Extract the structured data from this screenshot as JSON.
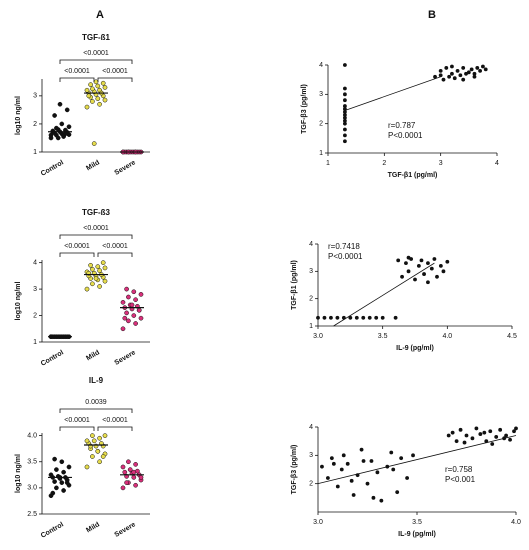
{
  "panel_labels": [
    "A",
    "B"
  ],
  "chart_data": [
    {
      "type": "dot",
      "title": "TGF-ß1",
      "y_label": "log10 ng/ml",
      "categories": [
        "Control",
        "Mild",
        "Severe"
      ],
      "colors": [
        "#111111",
        "#e6dc4c",
        "#d8307a"
      ],
      "values": [
        [
          1.5,
          1.55,
          1.6,
          1.62,
          1.65,
          1.68,
          1.7,
          1.72,
          1.75,
          1.78,
          1.8,
          1.6,
          1.58,
          1.85,
          1.9,
          2.0,
          2.3,
          2.5,
          2.7,
          1.7,
          1.65,
          1.5
        ],
        [
          2.6,
          2.7,
          2.8,
          2.85,
          2.9,
          2.95,
          3.0,
          3.05,
          3.1,
          3.1,
          3.15,
          3.2,
          3.2,
          3.25,
          3.3,
          3.35,
          3.4,
          3.45,
          3.5,
          3.0,
          3.1,
          1.3
        ],
        [
          1,
          1,
          1,
          1,
          1,
          1,
          1,
          1,
          1,
          1,
          1,
          1,
          1,
          1
        ]
      ],
      "means": [
        1.72,
        3.1,
        1
      ],
      "brackets": [
        "<0.0001",
        "<0.0001",
        "<0.0001"
      ],
      "ylim": [
        1,
        3.6
      ],
      "yticks": [
        1,
        2,
        3
      ]
    },
    {
      "type": "dot",
      "title": "TGF-ß3",
      "y_label": "log10 ng/ml",
      "categories": [
        "Control",
        "Mild",
        "Severe"
      ],
      "colors": [
        "#111111",
        "#e6dc4c",
        "#d8307a"
      ],
      "values": [
        [
          1.2,
          1.2,
          1.2,
          1.2,
          1.2,
          1.2,
          1.2,
          1.2,
          1.2,
          1.2,
          1.2,
          1.2
        ],
        [
          3.0,
          3.1,
          3.2,
          3.3,
          3.35,
          3.4,
          3.45,
          3.5,
          3.5,
          3.55,
          3.6,
          3.65,
          3.7,
          3.75,
          3.8,
          3.85,
          3.9,
          4.0,
          3.4,
          3.6
        ],
        [
          1.5,
          1.7,
          1.8,
          1.9,
          2.0,
          2.1,
          2.2,
          2.25,
          2.3,
          2.35,
          2.4,
          2.5,
          2.6,
          2.7,
          2.8,
          2.9,
          3.0,
          2.2,
          2.4,
          1.9
        ]
      ],
      "means": [
        1.2,
        3.55,
        2.3
      ],
      "brackets": [
        "<0.0001",
        "<0.0001",
        "<0.0001"
      ],
      "ylim": [
        1,
        4.1
      ],
      "yticks": [
        1,
        2,
        3,
        4
      ]
    },
    {
      "type": "dot",
      "title": "IL-9",
      "y_label": "log10 ng/ml",
      "categories": [
        "Control",
        "Mild",
        "Severe"
      ],
      "colors": [
        "#111111",
        "#e6dc4c",
        "#d8307a"
      ],
      "values": [
        [
          2.85,
          2.95,
          3.0,
          3.05,
          3.1,
          3.12,
          3.15,
          3.18,
          3.2,
          3.2,
          3.22,
          3.25,
          3.3,
          3.35,
          3.4,
          3.5,
          3.55,
          3.1,
          3.2,
          2.9
        ],
        [
          3.4,
          3.5,
          3.6,
          3.65,
          3.7,
          3.75,
          3.8,
          3.8,
          3.85,
          3.85,
          3.9,
          3.9,
          3.95,
          4.0,
          4.0,
          3.7,
          3.8,
          3.6
        ],
        [
          3.0,
          3.05,
          3.1,
          3.15,
          3.2,
          3.22,
          3.25,
          3.28,
          3.3,
          3.32,
          3.35,
          3.4,
          3.45,
          3.5,
          3.2,
          3.3,
          3.1
        ]
      ],
      "means": [
        3.2,
        3.82,
        3.25
      ],
      "brackets": [
        "0.0039",
        "<0.0001",
        "<0.0001"
      ],
      "ylim": [
        2.5,
        4.05
      ],
      "yticks": [
        {
          "value": 2.5,
          "label": "2.5"
        },
        {
          "value": 3,
          "label": "3.0"
        },
        {
          "value": 3.5,
          "label": "3.5"
        },
        {
          "value": 4,
          "label": "4.0"
        }
      ]
    },
    {
      "type": "scatter",
      "x_label": "TGF-β1 (pg/ml)",
      "y_label": "TGF-β3 (pg/ml)",
      "annotations": [
        "r=0.787",
        "P<0.0001"
      ],
      "color": "#111111",
      "x": [
        1.3,
        1.3,
        1.3,
        1.3,
        1.3,
        1.3,
        1.3,
        1.3,
        1.3,
        1.3,
        1.3,
        1.3,
        1.3,
        1.3,
        2.9,
        3.0,
        3.05,
        3.1,
        3.15,
        3.2,
        3.25,
        3.3,
        3.35,
        3.4,
        3.45,
        3.5,
        3.55,
        3.6,
        3.65,
        3.7,
        3.75,
        3.8,
        3.0,
        3.2,
        3.4,
        3.6
      ],
      "y": [
        1.4,
        1.6,
        1.8,
        2.0,
        2.1,
        2.2,
        2.3,
        2.4,
        2.5,
        2.6,
        2.8,
        3.0,
        3.2,
        4.0,
        3.6,
        3.8,
        3.5,
        3.9,
        3.6,
        3.7,
        3.55,
        3.8,
        3.65,
        3.9,
        3.7,
        3.75,
        3.85,
        3.7,
        3.9,
        3.8,
        3.95,
        3.85,
        3.65,
        3.95,
        3.5,
        3.6
      ],
      "trendline": {
        "x": [
          1.3,
          3.0
        ],
        "y": [
          2.45,
          3.6
        ]
      },
      "xlim": [
        1,
        4
      ],
      "xticks": [
        1,
        2,
        3,
        4
      ],
      "ylim": [
        1,
        4
      ],
      "yticks": [
        1,
        2,
        3,
        4
      ]
    },
    {
      "type": "scatter",
      "x_label": "IL-9 (pg/ml)",
      "y_label": "TGF-β1 (pg/ml)",
      "annotations": [
        "r=0.7418",
        "P<0.0001"
      ],
      "color": "#111111",
      "x": [
        3.0,
        3.05,
        3.1,
        3.15,
        3.2,
        3.25,
        3.3,
        3.35,
        3.4,
        3.45,
        3.5,
        3.6,
        3.62,
        3.65,
        3.68,
        3.7,
        3.72,
        3.75,
        3.78,
        3.8,
        3.82,
        3.85,
        3.88,
        3.9,
        3.92,
        3.95,
        3.97,
        4.0,
        3.7,
        3.85
      ],
      "y": [
        1.3,
        1.3,
        1.3,
        1.3,
        1.3,
        1.3,
        1.3,
        1.3,
        1.3,
        1.3,
        1.3,
        1.3,
        3.4,
        2.8,
        3.3,
        3.0,
        3.45,
        2.7,
        3.2,
        3.4,
        2.9,
        3.3,
        3.1,
        3.45,
        2.8,
        3.2,
        3.0,
        3.35,
        3.5,
        2.6
      ],
      "trendline": {
        "x": [
          3.12,
          3.9
        ],
        "y": [
          1,
          3.3
        ]
      },
      "xlim": [
        3,
        4.5
      ],
      "xticks": [
        {
          "value": 3,
          "label": "3.0"
        },
        {
          "value": 3.5,
          "label": "3.5"
        },
        {
          "value": 4,
          "label": "4.0"
        },
        {
          "value": 4.5,
          "label": "4.5"
        }
      ],
      "ylim": [
        1,
        4
      ],
      "yticks": [
        1,
        2,
        3,
        4
      ]
    },
    {
      "type": "scatter",
      "x_label": "IL-9 (pg/ml)",
      "y_label": "TGF-β3 (pg/ml)",
      "annotations": [
        "r=0.758",
        "P<0.001"
      ],
      "color": "#111111",
      "x": [
        3.02,
        3.05,
        3.07,
        3.1,
        3.12,
        3.15,
        3.18,
        3.2,
        3.22,
        3.25,
        3.27,
        3.3,
        3.32,
        3.35,
        3.37,
        3.4,
        3.42,
        3.45,
        3.48,
        3.08,
        3.17,
        3.28,
        3.38,
        3.13,
        3.23,
        3.68,
        3.7,
        3.72,
        3.75,
        3.78,
        3.8,
        3.82,
        3.85,
        3.87,
        3.9,
        3.92,
        3.95,
        3.97,
        4.0,
        3.74,
        3.84,
        3.94,
        3.99,
        3.66,
        3.88
      ],
      "y": [
        2.6,
        2.2,
        2.9,
        1.9,
        2.5,
        2.7,
        1.6,
        2.3,
        3.2,
        2.0,
        2.8,
        2.4,
        1.4,
        2.6,
        3.1,
        1.7,
        2.9,
        2.2,
        3.0,
        2.7,
        2.1,
        1.5,
        2.5,
        3.0,
        2.8,
        3.8,
        3.5,
        3.9,
        3.7,
        3.6,
        3.95,
        3.75,
        3.5,
        3.85,
        3.65,
        3.9,
        3.7,
        3.55,
        3.95,
        3.45,
        3.8,
        3.6,
        3.85,
        3.7,
        3.4
      ],
      "trendline": {
        "x": [
          3.0,
          4.0
        ],
        "y": [
          2.0,
          3.7
        ]
      },
      "xlim": [
        3,
        4
      ],
      "xticks": [
        {
          "value": 3,
          "label": "3.0"
        },
        {
          "value": 3.5,
          "label": "3.5"
        },
        {
          "value": 4,
          "label": "4.0"
        }
      ],
      "ylim": [
        1,
        4
      ],
      "yticks": [
        2,
        3,
        4
      ]
    }
  ]
}
